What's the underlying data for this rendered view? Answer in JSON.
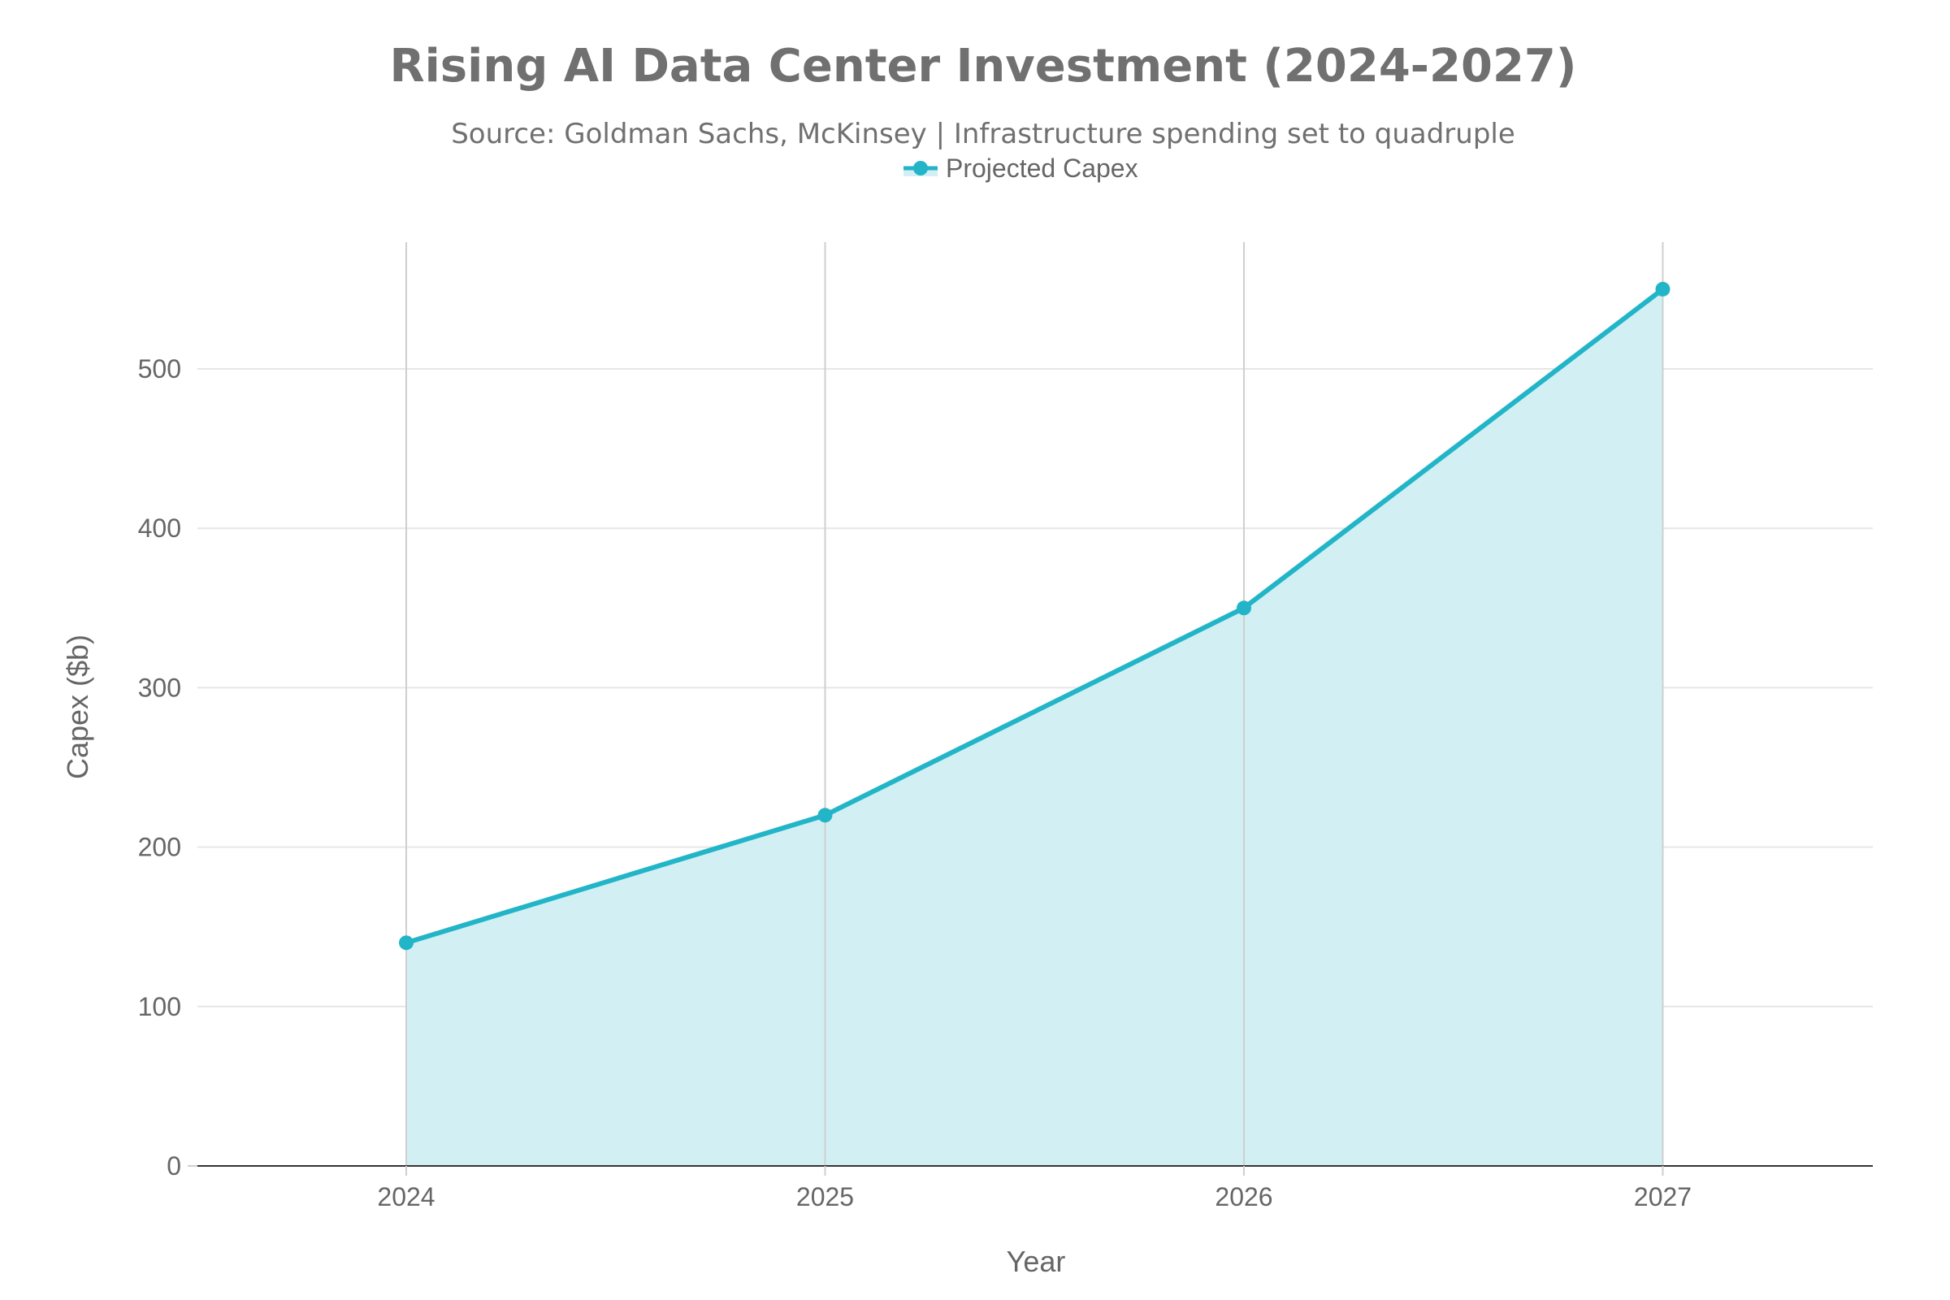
{
  "chart_data": {
    "type": "area",
    "title": "Rising AI Data Center Investment (2024-2027)",
    "subtitle": "Source: Goldman Sachs, McKinsey | Infrastructure spending set to quadruple",
    "xlabel": "Year",
    "ylabel": "Capex ($b)",
    "categories": [
      "2024",
      "2025",
      "2026",
      "2027"
    ],
    "series": [
      {
        "name": "Projected Capex",
        "values": [
          140,
          220,
          350,
          550
        ]
      }
    ],
    "ylim": [
      0,
      580
    ],
    "yticks": [
      0,
      100,
      200,
      300,
      400,
      500
    ],
    "ytick_labels": [
      "0",
      "100",
      "200",
      "300",
      "400",
      "500"
    ],
    "grid": true,
    "legend_position": "top-center",
    "colors": {
      "line": "#22b5c8",
      "fill": "#d2f0f3",
      "grid_h": "#e6e6e6",
      "grid_v": "#cfcfcf",
      "axis": "#333333",
      "text": "#6e6e6e"
    }
  }
}
